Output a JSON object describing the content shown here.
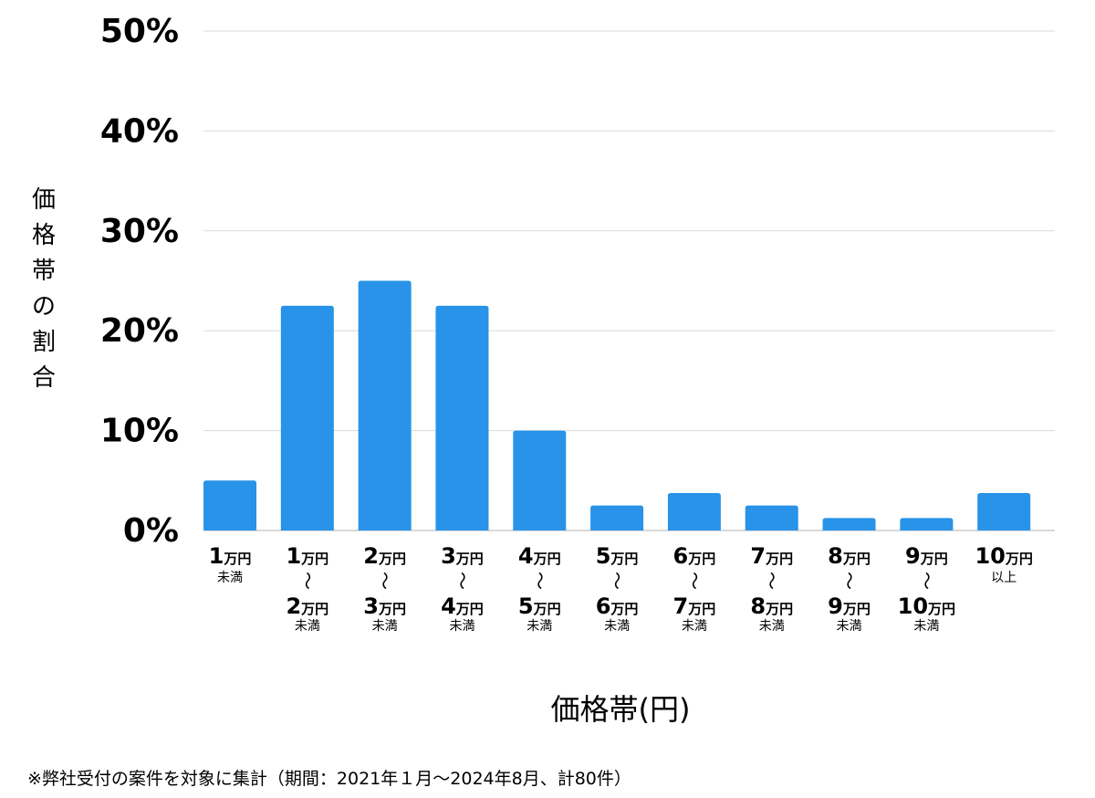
{
  "chart_data": {
    "type": "bar",
    "xlabel": "価格帯(円)",
    "ylabel": "価格帯の割合",
    "ylim": [
      0,
      50
    ],
    "yticks": [
      "0%",
      "10%",
      "20%",
      "30%",
      "40%",
      "50%"
    ],
    "grid": true,
    "bar_color": "#2893e8",
    "categories": [
      {
        "top": [
          "1",
          "万円"
        ],
        "bottom": null,
        "note": "未満"
      },
      {
        "top": [
          "1",
          "万円"
        ],
        "bottom": [
          "2",
          "万円"
        ],
        "note": "未満"
      },
      {
        "top": [
          "2",
          "万円"
        ],
        "bottom": [
          "3",
          "万円"
        ],
        "note": "未満"
      },
      {
        "top": [
          "3",
          "万円"
        ],
        "bottom": [
          "4",
          "万円"
        ],
        "note": "未満"
      },
      {
        "top": [
          "4",
          "万円"
        ],
        "bottom": [
          "5",
          "万円"
        ],
        "note": "未満"
      },
      {
        "top": [
          "5",
          "万円"
        ],
        "bottom": [
          "6",
          "万円"
        ],
        "note": "未満"
      },
      {
        "top": [
          "6",
          "万円"
        ],
        "bottom": [
          "7",
          "万円"
        ],
        "note": "未満"
      },
      {
        "top": [
          "7",
          "万円"
        ],
        "bottom": [
          "8",
          "万円"
        ],
        "note": "未満"
      },
      {
        "top": [
          "8",
          "万円"
        ],
        "bottom": [
          "9",
          "万円"
        ],
        "note": "未満"
      },
      {
        "top": [
          "9",
          "万円"
        ],
        "bottom": [
          "10",
          "万円"
        ],
        "note": "未満"
      },
      {
        "top": [
          "10",
          "万円"
        ],
        "bottom": null,
        "note": "以上"
      }
    ],
    "range_symbol": "〜",
    "values": [
      5.0,
      22.5,
      25.0,
      22.5,
      10.0,
      2.5,
      3.75,
      2.5,
      1.25,
      1.25,
      3.75
    ]
  },
  "footnote": "※弊社受付の案件を対象に集計（期間：2021年１月〜2024年8月、計80件）"
}
